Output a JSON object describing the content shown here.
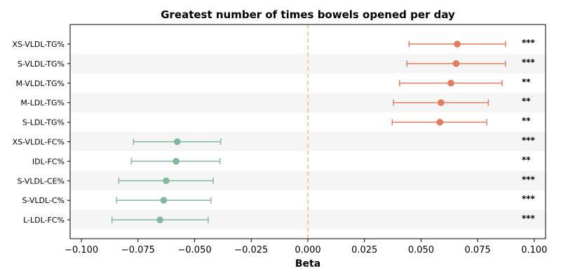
{
  "chart_data": {
    "type": "forest",
    "title": "Greatest number of times bowels opened per day",
    "xlabel": "Beta",
    "ylabel": "",
    "xlim": [
      -0.105,
      0.105
    ],
    "xticks": [
      -0.1,
      -0.075,
      -0.05,
      -0.025,
      0.0,
      0.025,
      0.05,
      0.075,
      0.1
    ],
    "xtick_labels": [
      "−0.100",
      "−0.075",
      "−0.050",
      "−0.025",
      "0.000",
      "0.025",
      "0.050",
      "0.075",
      "0.100"
    ],
    "reference_line": 0.0,
    "grid": false,
    "alternating_row_shading": true,
    "colors": {
      "positive": "#e07b5f",
      "negative": "#84b89c",
      "reference_line": "#f4b97a",
      "row_shade": "#f5f5f5"
    },
    "rows": [
      {
        "label": "XS-VLDL-TG%",
        "beta": 0.066,
        "ci_low": 0.0447,
        "ci_high": 0.0873,
        "sig": "***"
      },
      {
        "label": "S-VLDL-TG%",
        "beta": 0.0655,
        "ci_low": 0.0437,
        "ci_high": 0.0873,
        "sig": "***"
      },
      {
        "label": "M-VLDL-TG%",
        "beta": 0.0632,
        "ci_low": 0.0405,
        "ci_high": 0.0858,
        "sig": "**"
      },
      {
        "label": "M-LDL-TG%",
        "beta": 0.0588,
        "ci_low": 0.0378,
        "ci_high": 0.0797,
        "sig": "**"
      },
      {
        "label": "S-LDL-TG%",
        "beta": 0.0583,
        "ci_low": 0.0373,
        "ci_high": 0.079,
        "sig": "**"
      },
      {
        "label": "XS-VLDL-FC%",
        "beta": -0.0577,
        "ci_low": -0.077,
        "ci_high": -0.0385,
        "sig": "***"
      },
      {
        "label": "IDL-FC%",
        "beta": -0.0582,
        "ci_low": -0.0779,
        "ci_high": -0.0388,
        "sig": "**"
      },
      {
        "label": "S-VLDL-CE%",
        "beta": -0.0626,
        "ci_low": -0.0835,
        "ci_high": -0.0418,
        "sig": "***"
      },
      {
        "label": "S-VLDL-C%",
        "beta": -0.0637,
        "ci_low": -0.0845,
        "ci_high": -0.0428,
        "sig": "***"
      },
      {
        "label": "L-LDL-FC%",
        "beta": -0.0653,
        "ci_low": -0.0865,
        "ci_high": -0.044,
        "sig": "***"
      }
    ]
  }
}
